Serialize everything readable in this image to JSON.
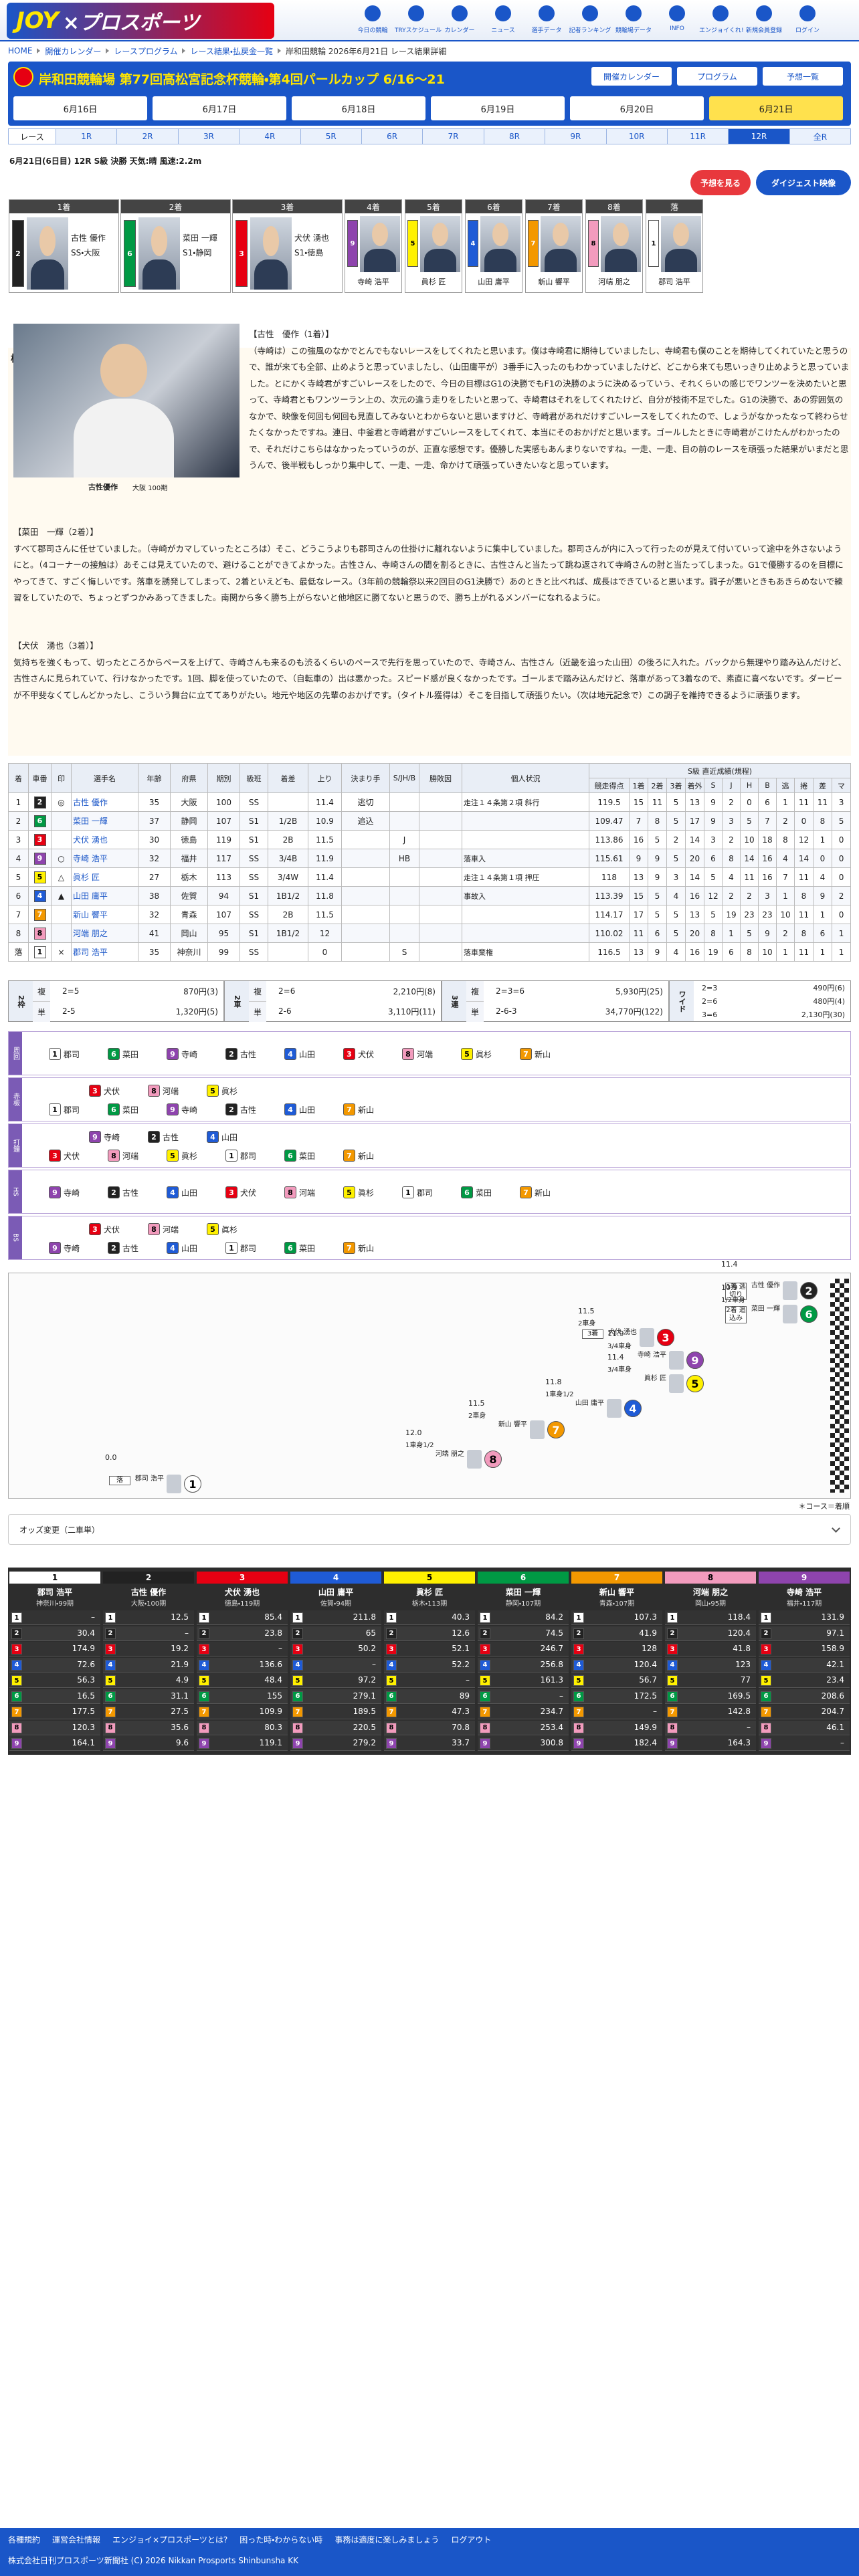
{
  "header": {
    "logo": "JOY",
    "logo2": "×プロスポーツ",
    "nav": [
      "今日の競輪",
      "TRYスケジュール",
      "カレンダー",
      "ニュース",
      "選手データ",
      "記者ランキング",
      "競輪場データ",
      "INFO",
      "エンジョイくれ!",
      "新規会員登録",
      "ログイン"
    ]
  },
  "breadcrumb": [
    "HOME",
    "開催カレンダー",
    "レースプログラム",
    "レース結果・払戻金一覧",
    "岸和田競輪 2026年6月21日 レース結果詳細"
  ],
  "meet": {
    "title": "岸和田競輪場 第77回高松宮記念杯競輪・第4回パールカップ 6/16〜21",
    "buttons": [
      "開催カレンダー",
      "プログラム",
      "予想一覧"
    ]
  },
  "dates": [
    {
      "label": "6月16日"
    },
    {
      "label": "6月17日"
    },
    {
      "label": "6月18日"
    },
    {
      "label": "6月19日"
    },
    {
      "label": "6月20日"
    },
    {
      "label": "6月21日",
      "selected": true
    }
  ],
  "races": {
    "label": "レース",
    "tabs": [
      {
        "label": "1R"
      },
      {
        "label": "2R"
      },
      {
        "label": "3R"
      },
      {
        "label": "4R"
      },
      {
        "label": "5R"
      },
      {
        "label": "6R"
      },
      {
        "label": "7R"
      },
      {
        "label": "8R"
      },
      {
        "label": "9R"
      },
      {
        "label": "10R"
      },
      {
        "label": "11R"
      },
      {
        "label": "12R",
        "selected": true
      },
      {
        "label": "全R"
      }
    ]
  },
  "race_info": "6月21日(6日目) 12R S級 決勝 天気:晴 風速:2.2m",
  "actions": [
    "予想を見る",
    "ダイジェスト映像"
  ],
  "car_colors": [
    "#ffffff",
    "#222222",
    "#e60012",
    "#1f5bd6",
    "#fff100",
    "#009944",
    "#f39800",
    "#f29bbd",
    "#8e44ad"
  ],
  "car_text_colors": [
    "#000000",
    "#ffffff",
    "#ffffff",
    "#ffffff",
    "#000000",
    "#ffffff",
    "#ffffff",
    "#000000",
    "#ffffff"
  ],
  "podium": [
    {
      "place": "1着",
      "car": 2,
      "name": "古性 優作",
      "detail": "SS・大阪"
    },
    {
      "place": "2着",
      "car": 6,
      "name": "菜田 一輝",
      "detail": "S1・静岡"
    },
    {
      "place": "3着",
      "car": 3,
      "name": "犬伏 湧也",
      "detail": "S1・徳島"
    }
  ],
  "others": [
    {
      "place": "4着",
      "car": 9,
      "name": "寺崎 浩平"
    },
    {
      "place": "5着",
      "car": 5,
      "name": "眞杉 匠"
    },
    {
      "place": "6着",
      "car": 4,
      "name": "山田 庸平"
    },
    {
      "place": "7着",
      "car": 7,
      "name": "新山 響平"
    },
    {
      "place": "8着",
      "car": 8,
      "name": "河端 朋之"
    },
    {
      "place": "落",
      "car": 1,
      "name": "郡司 浩平"
    }
  ],
  "report": {
    "title": "検車場レポート",
    "photo_caption": "古性優作",
    "photo_sub": "大阪 100期",
    "paragraphs": [
      {
        "heading": "【古性　優作（1着）】",
        "text": "（寺崎は）この強風のなかでとんでもないレースをしてくれたと思います。僕は寺崎君に期待していましたし、寺崎君も僕のことを期待してくれていたと思うので、誰が来ても全部、止めようと思っていましたし、（山田庸平が）3番手に入ったのもわかっていましたけど、どこから来ても思いっきり止めようと思っていました。とにかく寺崎君がすごいレースをしたので、今日の目標はG1の決勝でもF1の決勝のように決めるっていう、それくらいの感じでワンツーを決めたいと思って、寺崎君ともワンツーラン上の、次元の違う走りをしたいと思って、寺崎君はそれをしてくれたけど、自分が技術不足でした。G1の決勝で、あの雰囲気のなかで、映像を何回も何回も見直してみないとわからないと思いますけど、寺崎君があれだけすごいレースをしてくれたので、しょうがなかったなって終わらせたくなかったですね。連日、中釜君と寺崎君がすごいレースをしてくれて、本当にそのおかげだと思います。ゴールしたときに寺崎君がこけたんがわかったので、それだけこちらはなかったっていうのが、正直な感想です。優勝した実感もあんまりないですね。一走、一走、目の前のレースを頑張った結果がいまだと思うんで、後半戦もしっかり集中して、一走、一走、命かけて頑張っていきたいなと思っています。"
      },
      {
        "heading": "【菜田　一輝（2着）】",
        "text": "すべて郡司さんに任せていました。（寺崎がカマしていったところは）そこ、どうこうよりも郡司さんの仕掛けに離れないように集中していました。郡司さんが内に入って行ったのが見えて付いていって途中を外さないようにと。（4コーナーの接触は）あそこは見えていたので、避けることができてよかった。古性さん、寺崎さんの間を割るときに、古性さんと当たって跳ね返されて寺崎さんの肘と当たってしまった。G1で優勝するのを目標にやってきて、すごく悔しいです。落車を誘発してしまって、2着といえども、最低なレース。（3年前の競輪祭以来2回目のG1決勝で）あのときと比べれば、成長はできていると思います。調子が悪いときもあきらめないで練習をしていたので、ちょっとずつかみあってきました。南関から多く勝ち上がらないと他地区に勝てないと思うので、勝ち上がれるメンバーになれるように。"
      },
      {
        "heading": "【犬伏　湧也（3着）】",
        "text": "気持ちを強くもって、切ったところからペースを上げて、寺崎さんも来るのも渋るくらいのペースで先行を思っていたので、寺崎さん、古性さん（近畿を追った山田）の後ろに入れた。バックから無理やり踏み込んだけど、古性さんに見られていて、行けなかったです。1回、脚を使っていたので、（自転車の）出は悪かった。スピード感が良くなかったです。ゴールまで踏み込んだけど、落車があって3着なので、素直に喜べないです。ダービーが不甲斐なくてしんどかったし、こういう舞台に立ててありがたい。地元や地区の先輩のおかげです。（タイトル獲得は）そこを目指して頑張りたい。（次は地元記念で）この調子を維持できるように頑張ります。"
      }
    ]
  },
  "results": {
    "group_header": "S級 直近成績(規程)",
    "columns": [
      "着",
      "車番",
      "印",
      "選手名",
      "年齢",
      "府県",
      "期別",
      "級班",
      "着差",
      "上り",
      "決まり手",
      "S/JH/B",
      "勝敗因",
      "個人状況",
      "競走得点",
      "1着",
      "2着",
      "3着",
      "着外",
      "S",
      "J",
      "H",
      "B",
      "逃",
      "捲",
      "差",
      "マ"
    ],
    "rows": [
      [
        1,
        2,
        "◎",
        "古性 優作",
        35,
        "大阪",
        100,
        "SS",
        null,
        11.4,
        "逃切",
        null,
        null,
        "走注１４条第２項 斜行",
        119.5,
        15,
        11,
        5,
        13,
        9,
        2,
        0,
        6,
        1,
        11,
        11,
        3
      ],
      [
        2,
        6,
        null,
        "菜田 一輝",
        37,
        "静岡",
        107,
        "S1",
        "1/2B",
        10.9,
        "追込",
        null,
        null,
        null,
        109.47,
        7,
        8,
        5,
        17,
        9,
        3,
        5,
        7,
        2,
        0,
        8,
        5
      ],
      [
        3,
        3,
        null,
        "犬伏 湧也",
        30,
        "徳島",
        119,
        "S1",
        "2B",
        11.5,
        null,
        "J",
        null,
        null,
        113.86,
        16,
        5,
        2,
        14,
        3,
        2,
        10,
        18,
        8,
        12,
        1,
        0
      ],
      [
        4,
        9,
        "○",
        "寺崎 浩平",
        32,
        "福井",
        117,
        "SS",
        "3/4B",
        11.9,
        null,
        "HB",
        null,
        "落車入",
        115.61,
        9,
        9,
        5,
        20,
        6,
        8,
        14,
        16,
        4,
        14,
        0,
        0
      ],
      [
        5,
        5,
        "△",
        "眞杉 匠",
        27,
        "栃木",
        113,
        "SS",
        "3/4W",
        11.4,
        null,
        null,
        null,
        "走注１４条第１項 押圧",
        118.0,
        13,
        9,
        3,
        14,
        5,
        4,
        11,
        16,
        7,
        11,
        4,
        0
      ],
      [
        6,
        4,
        "▲",
        "山田 庸平",
        38,
        "佐賀",
        94,
        "S1",
        "1B1/2",
        11.8,
        null,
        null,
        null,
        "事故入",
        113.39,
        15,
        5,
        4,
        16,
        12,
        2,
        2,
        3,
        1,
        8,
        9,
        2
      ],
      [
        7,
        7,
        null,
        "新山 響平",
        32,
        "青森",
        107,
        "SS",
        "2B",
        11.5,
        null,
        null,
        null,
        null,
        114.17,
        17,
        5,
        5,
        13,
        5,
        19,
        23,
        23,
        10,
        11,
        1,
        0
      ],
      [
        8,
        8,
        null,
        "河端 朋之",
        41,
        "岡山",
        95,
        "S1",
        "1B1/2",
        12.0,
        null,
        null,
        null,
        null,
        110.02,
        11,
        6,
        5,
        20,
        8,
        1,
        5,
        9,
        2,
        8,
        6,
        1
      ],
      [
        "落",
        1,
        "×",
        "郡司 浩平",
        35,
        "神奈川",
        99,
        "SS",
        null,
        0.0,
        null,
        "S",
        null,
        "落車棄権",
        116.5,
        13,
        9,
        4,
        16,
        19,
        6,
        8,
        10,
        1,
        11,
        1,
        1
      ]
    ]
  },
  "payout": [
    {
      "label": "2枠",
      "rows": [
        {
          "kind": "複",
          "combo": "2=5",
          "pay": "870円(3)"
        },
        {
          "kind": "単",
          "combo": "2-5",
          "pay": "1,320円(5)"
        }
      ]
    },
    {
      "label": "2車",
      "rows": [
        {
          "kind": "複",
          "combo": "2=6",
          "pay": "2,210円(8)"
        },
        {
          "kind": "単",
          "combo": "2-6",
          "pay": "3,110円(11)"
        }
      ]
    },
    {
      "label": "3連",
      "rows": [
        {
          "kind": "複",
          "combo": "2=3=6",
          "pay": "5,930円(25)"
        },
        {
          "kind": "単",
          "combo": "2-6-3",
          "pay": "34,770円(122)"
        }
      ]
    },
    {
      "label": "ワイド",
      "rows": [
        {
          "combo": "2=3",
          "pay": "490円(6)"
        },
        {
          "combo": "2=6",
          "pay": "480円(4)"
        },
        {
          "combo": "3=6",
          "pay": "2,130円(30)"
        }
      ]
    }
  ],
  "lines": [
    {
      "label": "周回",
      "lower": [
        {
          "car": 1,
          "name": "郡司"
        },
        {
          "car": 6,
          "name": "菜田"
        },
        {
          "car": 9,
          "name": "寺崎"
        },
        {
          "car": 2,
          "name": "古性"
        },
        {
          "car": 4,
          "name": "山田"
        },
        {
          "car": 3,
          "name": "犬伏"
        },
        {
          "car": 8,
          "name": "河端"
        },
        {
          "car": 5,
          "name": "眞杉"
        },
        {
          "car": 7,
          "name": "新山"
        }
      ]
    },
    {
      "label": "赤板",
      "upper": [
        {
          "car": 3,
          "name": "犬伏"
        },
        {
          "car": 8,
          "name": "河端"
        },
        {
          "car": 5,
          "name": "眞杉"
        }
      ],
      "lower": [
        {
          "car": 1,
          "name": "郡司"
        },
        {
          "car": 6,
          "name": "菜田"
        },
        {
          "car": 9,
          "name": "寺崎"
        },
        {
          "car": 2,
          "name": "古性"
        },
        {
          "car": 4,
          "name": "山田"
        },
        {
          "car": 7,
          "name": "新山"
        }
      ]
    },
    {
      "label": "打鐘",
      "upper": [
        {
          "car": 9,
          "name": "寺崎"
        },
        {
          "car": 2,
          "name": "古性"
        },
        {
          "car": 4,
          "name": "山田"
        }
      ],
      "lower": [
        {
          "car": 3,
          "name": "犬伏"
        },
        {
          "car": 8,
          "name": "河端"
        },
        {
          "car": 5,
          "name": "眞杉"
        },
        {
          "car": 1,
          "name": "郡司"
        },
        {
          "car": 6,
          "name": "菜田"
        },
        {
          "car": 7,
          "name": "新山"
        }
      ]
    },
    {
      "label": "HS",
      "lower": [
        {
          "car": 9,
          "name": "寺崎"
        },
        {
          "car": 2,
          "name": "古性"
        },
        {
          "car": 4,
          "name": "山田"
        },
        {
          "car": 3,
          "name": "犬伏"
        },
        {
          "car": 8,
          "name": "河端"
        },
        {
          "car": 5,
          "name": "眞杉"
        },
        {
          "car": 1,
          "name": "郡司"
        },
        {
          "car": 6,
          "name": "菜田"
        },
        {
          "car": 7,
          "name": "新山"
        }
      ]
    },
    {
      "label": "BS",
      "upper": [
        {
          "car": 3,
          "name": "犬伏"
        },
        {
          "car": 8,
          "name": "河端"
        },
        {
          "car": 5,
          "name": "眞杉"
        }
      ],
      "lower": [
        {
          "car": 9,
          "name": "寺崎"
        },
        {
          "car": 2,
          "name": "古性"
        },
        {
          "car": 4,
          "name": "山田"
        },
        {
          "car": 1,
          "name": "郡司"
        },
        {
          "car": 6,
          "name": "菜田"
        },
        {
          "car": 7,
          "name": "新山"
        }
      ]
    }
  ],
  "race_map": {
    "note": "＊コース＝着順",
    "entries": [
      {
        "car": 2,
        "name": "古性 優作",
        "agari": "11.4",
        "tag": "1着 逃切り"
      },
      {
        "car": 6,
        "name": "菜田 一輝",
        "agari": "10.9",
        "margin": "1/2車身",
        "tag": "2着 追込み"
      },
      {
        "car": 3,
        "name": "犬伏 湧也",
        "agari": "11.5",
        "margin": "2車身",
        "tag": "3着"
      },
      {
        "car": 9,
        "name": "寺崎 浩平",
        "agari": "11.9",
        "margin": "3/4車身"
      },
      {
        "car": 5,
        "name": "眞杉 匠",
        "agari": "11.4",
        "margin": "3/4車身"
      },
      {
        "car": 4,
        "name": "山田 庸平",
        "agari": "11.8",
        "margin": "1車身1/2"
      },
      {
        "car": 7,
        "name": "新山 響平",
        "agari": "11.5",
        "margin": "2車身"
      },
      {
        "car": 8,
        "name": "河端 朋之",
        "agari": "12.0",
        "margin": "1車身1/2"
      },
      {
        "car": 1,
        "name": "郡司 浩平",
        "agari": "0.0",
        "tag": "落"
      }
    ]
  },
  "odds": {
    "toggle": "オッズ変更（二車単）",
    "columns": [
      {
        "car": 1,
        "name": "郡司 浩平",
        "info": "神奈川・99期",
        "values": [
          "–",
          30.4,
          174.9,
          72.6,
          56.3,
          16.5,
          177.5,
          120.3,
          164.1
        ]
      },
      {
        "car": 2,
        "name": "古性 優作",
        "info": "大阪・100期",
        "values": [
          12.5,
          "–",
          19.2,
          21.9,
          4.9,
          31.1,
          27.5,
          35.6,
          9.6
        ]
      },
      {
        "car": 3,
        "name": "犬伏 湧也",
        "info": "徳島・119期",
        "values": [
          85.4,
          23.8,
          "–",
          136.6,
          48.4,
          155.0,
          109.9,
          80.3,
          119.1
        ]
      },
      {
        "car": 4,
        "name": "山田 庸平",
        "info": "佐賀・94期",
        "values": [
          211.8,
          65.0,
          50.2,
          "–",
          97.2,
          279.1,
          189.5,
          220.5,
          279.2
        ]
      },
      {
        "car": 5,
        "name": "眞杉 匠",
        "info": "栃木・113期",
        "values": [
          40.3,
          12.6,
          52.1,
          52.2,
          "–",
          89.0,
          47.3,
          70.8,
          33.7
        ]
      },
      {
        "car": 6,
        "name": "菜田 一輝",
        "info": "静岡・107期",
        "values": [
          84.2,
          74.5,
          246.7,
          256.8,
          161.3,
          "–",
          234.7,
          253.4,
          300.8
        ]
      },
      {
        "car": 7,
        "name": "新山 響平",
        "info": "青森・107期",
        "values": [
          107.3,
          41.9,
          128.0,
          120.4,
          56.7,
          172.5,
          "–",
          149.9,
          182.4
        ]
      },
      {
        "car": 8,
        "name": "河端 朋之",
        "info": "岡山・95期",
        "values": [
          118.4,
          120.4,
          41.8,
          123.0,
          77.0,
          169.5,
          142.8,
          "–",
          164.3
        ]
      },
      {
        "car": 9,
        "name": "寺崎 浩平",
        "info": "福井・117期",
        "values": [
          131.9,
          97.1,
          158.9,
          42.1,
          23.4,
          208.6,
          204.7,
          46.1,
          "–"
        ]
      }
    ]
  },
  "footer": {
    "links": [
      "各種規約",
      "運営会社情報",
      "エンジョイ×プロスポーツとは?",
      "困った時・わからない時",
      "事務は適度に楽しみましょう",
      "ログアウト"
    ],
    "copyright": "株式会社日刊プロスポーツ新聞社 (C) 2026 Nikkan Prosports Shinbunsha KK"
  }
}
